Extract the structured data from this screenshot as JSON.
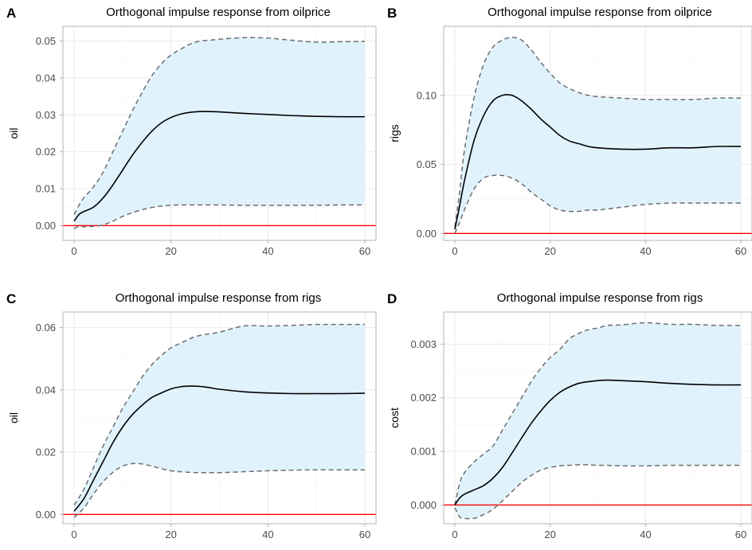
{
  "figure": {
    "colors": {
      "band_fill": "#e0f3fd",
      "bound_line": "#6e6e6e",
      "response_line": "#000000",
      "zero_line": "#ff0000",
      "grid": "#ebebeb",
      "panel_border": "#b3b3b3",
      "tick_label": "#4d4d4d"
    }
  },
  "chart_data": [
    {
      "panel": "A",
      "type": "line",
      "title": "Orthogonal impulse response from oilprice",
      "xlabel": "",
      "ylabel": "oil",
      "xlim": [
        0,
        60
      ],
      "ylim": [
        -0.004,
        0.054
      ],
      "x_ticks": [
        0,
        20,
        40,
        60
      ],
      "y_ticks": [
        0,
        0.01,
        0.02,
        0.03,
        0.04,
        0.05
      ],
      "y_tick_labels": [
        "0.00",
        "0.01",
        "0.02",
        "0.03",
        "0.04",
        "0.05"
      ],
      "grid": true,
      "zero_line": 0,
      "x": [
        0,
        1,
        2,
        4,
        6,
        8,
        10,
        12,
        14,
        16,
        18,
        20,
        22,
        24,
        26,
        28,
        30,
        35,
        40,
        45,
        50,
        55,
        60
      ],
      "series": [
        {
          "role": "response",
          "values": [
            0.0012,
            0.003,
            0.0038,
            0.005,
            0.0075,
            0.011,
            0.015,
            0.019,
            0.0225,
            0.0255,
            0.0278,
            0.0293,
            0.0302,
            0.0307,
            0.0309,
            0.0309,
            0.0308,
            0.0304,
            0.0301,
            0.0298,
            0.0296,
            0.0295,
            0.0295
          ]
        },
        {
          "role": "upper",
          "values": [
            0.003,
            0.0055,
            0.0075,
            0.0105,
            0.0145,
            0.02,
            0.0255,
            0.031,
            0.036,
            0.0405,
            0.0438,
            0.0462,
            0.0478,
            0.0492,
            0.05,
            0.0502,
            0.0505,
            0.0509,
            0.0508,
            0.0502,
            0.0497,
            0.0498,
            0.0499
          ]
        },
        {
          "role": "lower",
          "values": [
            -0.0008,
            -0.0002,
            -0.0003,
            -0.0002,
            0.0002,
            0.0012,
            0.0025,
            0.0035,
            0.0043,
            0.0049,
            0.0053,
            0.0055,
            0.0056,
            0.0056,
            0.0056,
            0.0056,
            0.0056,
            0.0055,
            0.0055,
            0.0055,
            0.0055,
            0.0056,
            0.0056
          ]
        }
      ]
    },
    {
      "panel": "B",
      "type": "line",
      "title": "Orthogonal impulse response from oilprice",
      "xlabel": "",
      "ylabel": "rigs",
      "xlim": [
        0,
        60
      ],
      "ylim": [
        -0.005,
        0.15
      ],
      "x_ticks": [
        0,
        20,
        40,
        60
      ],
      "y_ticks": [
        0,
        0.05,
        0.1
      ],
      "y_tick_labels": [
        "0.00",
        "0.05",
        "0.10"
      ],
      "grid": true,
      "zero_line": 0,
      "x": [
        0,
        1,
        2,
        4,
        6,
        8,
        10,
        12,
        14,
        16,
        18,
        20,
        22,
        24,
        26,
        28,
        30,
        35,
        40,
        45,
        50,
        55,
        60
      ],
      "series": [
        {
          "role": "response",
          "values": [
            0.003,
            0.02,
            0.038,
            0.067,
            0.085,
            0.096,
            0.1,
            0.1,
            0.096,
            0.09,
            0.083,
            0.077,
            0.071,
            0.067,
            0.065,
            0.063,
            0.062,
            0.061,
            0.061,
            0.062,
            0.062,
            0.063,
            0.063
          ]
        },
        {
          "role": "upper",
          "values": [
            0.005,
            0.03,
            0.06,
            0.098,
            0.122,
            0.135,
            0.14,
            0.142,
            0.14,
            0.133,
            0.124,
            0.116,
            0.109,
            0.105,
            0.102,
            0.1,
            0.099,
            0.098,
            0.097,
            0.097,
            0.097,
            0.098,
            0.098
          ]
        },
        {
          "role": "lower",
          "values": [
            0.0,
            0.008,
            0.017,
            0.032,
            0.04,
            0.042,
            0.042,
            0.04,
            0.036,
            0.03,
            0.025,
            0.02,
            0.017,
            0.016,
            0.016,
            0.017,
            0.017,
            0.019,
            0.021,
            0.022,
            0.022,
            0.022,
            0.022
          ]
        }
      ]
    },
    {
      "panel": "C",
      "type": "line",
      "title": "Orthogonal impulse response from rigs",
      "xlabel": "",
      "ylabel": "oil",
      "xlim": [
        0,
        60
      ],
      "ylim": [
        -0.003,
        0.065
      ],
      "x_ticks": [
        0,
        20,
        40,
        60
      ],
      "y_ticks": [
        0,
        0.02,
        0.04,
        0.06
      ],
      "y_tick_labels": [
        "0.00",
        "0.02",
        "0.04",
        "0.06"
      ],
      "grid": true,
      "zero_line": 0,
      "x": [
        0,
        2,
        4,
        6,
        8,
        10,
        12,
        14,
        16,
        18,
        20,
        22,
        24,
        26,
        28,
        30,
        35,
        40,
        45,
        50,
        55,
        60
      ],
      "series": [
        {
          "role": "response",
          "values": [
            0.001,
            0.005,
            0.011,
            0.017,
            0.023,
            0.028,
            0.032,
            0.035,
            0.0375,
            0.039,
            0.0403,
            0.041,
            0.0412,
            0.0411,
            0.0407,
            0.0402,
            0.0394,
            0.039,
            0.0388,
            0.0388,
            0.0388,
            0.0389
          ]
        },
        {
          "role": "upper",
          "values": [
            0.003,
            0.008,
            0.015,
            0.022,
            0.028,
            0.034,
            0.039,
            0.044,
            0.048,
            0.051,
            0.0535,
            0.055,
            0.0565,
            0.0575,
            0.058,
            0.0585,
            0.0605,
            0.0605,
            0.0607,
            0.061,
            0.061,
            0.061
          ]
        },
        {
          "role": "lower",
          "values": [
            -0.001,
            0.002,
            0.0065,
            0.0105,
            0.0135,
            0.0155,
            0.0163,
            0.0162,
            0.0155,
            0.0147,
            0.014,
            0.0137,
            0.0135,
            0.0134,
            0.0134,
            0.0134,
            0.0137,
            0.014,
            0.0142,
            0.0143,
            0.0143,
            0.0143
          ]
        }
      ]
    },
    {
      "panel": "D",
      "type": "line",
      "title": "Orthogonal impulse response from rigs",
      "xlabel": "",
      "ylabel": "cost",
      "xlim": [
        0,
        60
      ],
      "ylim": [
        -0.00035,
        0.0036
      ],
      "x_ticks": [
        0,
        20,
        40,
        60
      ],
      "y_ticks": [
        0,
        0.001,
        0.002,
        0.003
      ],
      "y_tick_labels": [
        "0.000",
        "0.001",
        "0.002",
        "0.003"
      ],
      "grid": true,
      "zero_line": 0,
      "x": [
        0,
        1,
        2,
        4,
        6,
        8,
        10,
        12,
        14,
        16,
        18,
        20,
        22,
        24,
        26,
        28,
        30,
        32,
        35,
        40,
        45,
        50,
        55,
        60
      ],
      "series": [
        {
          "role": "response",
          "values": [
            0.0,
            0.00013,
            0.0002,
            0.00028,
            0.00036,
            0.0005,
            0.0007,
            0.00097,
            0.00125,
            0.00152,
            0.00175,
            0.00195,
            0.0021,
            0.0022,
            0.00227,
            0.0023,
            0.00232,
            0.00233,
            0.00232,
            0.0023,
            0.00227,
            0.00225,
            0.00224,
            0.00224
          ]
        },
        {
          "role": "upper",
          "values": [
            0.0,
            0.0004,
            0.0006,
            0.0008,
            0.00095,
            0.0011,
            0.0014,
            0.0017,
            0.002,
            0.0023,
            0.00255,
            0.00275,
            0.0029,
            0.0031,
            0.0032,
            0.00327,
            0.0033,
            0.00335,
            0.00336,
            0.0034,
            0.00337,
            0.00337,
            0.00335,
            0.00335
          ]
        },
        {
          "role": "lower",
          "values": [
            -5e-05,
            -0.00022,
            -0.00025,
            -0.00025,
            -0.00018,
            -8e-05,
            8e-05,
            0.00025,
            0.00042,
            0.00055,
            0.00065,
            0.0007,
            0.00073,
            0.00074,
            0.00075,
            0.00075,
            0.00074,
            0.00074,
            0.00073,
            0.00073,
            0.00074,
            0.00074,
            0.00074,
            0.00074
          ]
        }
      ]
    }
  ]
}
